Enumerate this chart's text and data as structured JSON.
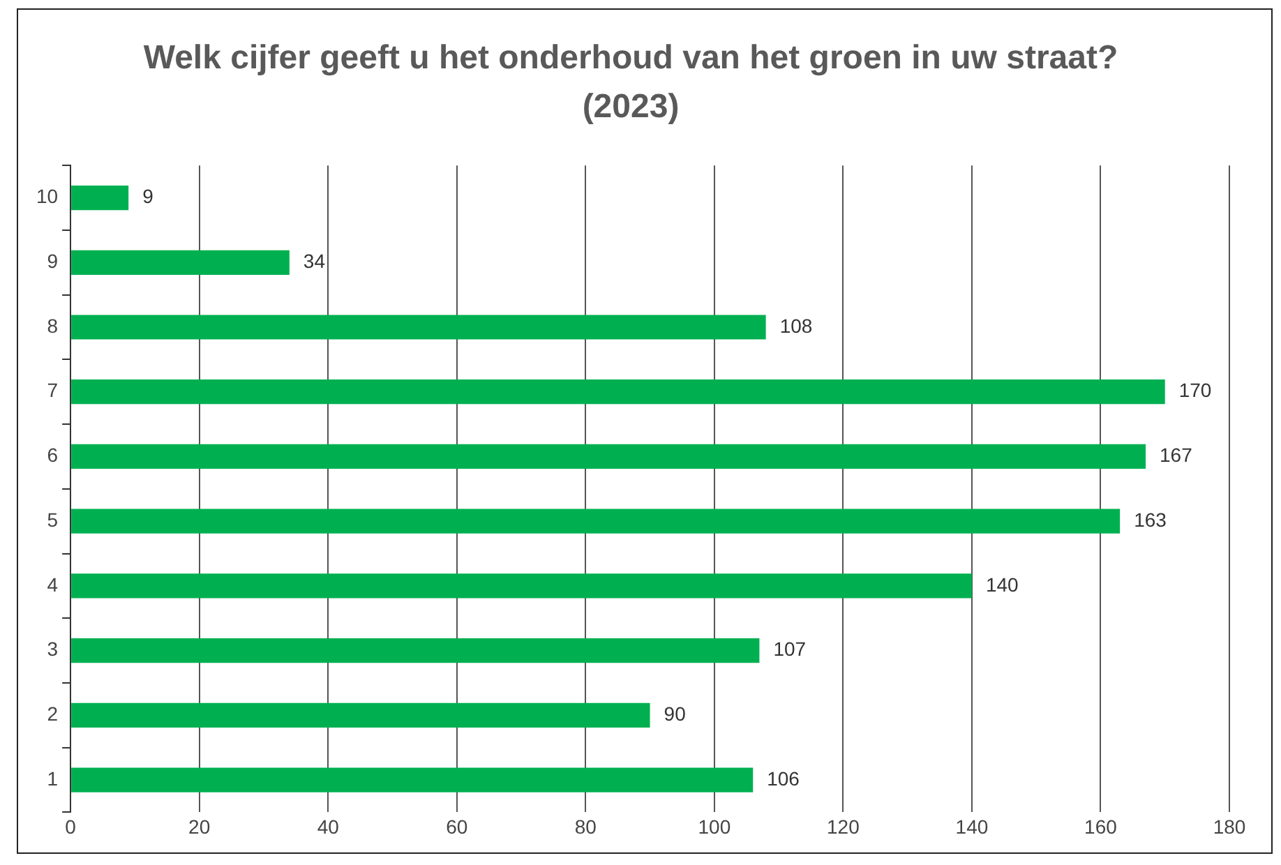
{
  "chart_data": {
    "type": "bar",
    "orientation": "horizontal",
    "title": "Welk cijfer geeft u het onderhoud van het groen in uw straat?",
    "subtitle": "(2023)",
    "categories": [
      "10",
      "9",
      "8",
      "7",
      "6",
      "5",
      "4",
      "3",
      "2",
      "1"
    ],
    "values": [
      9,
      34,
      108,
      170,
      167,
      163,
      140,
      107,
      90,
      106
    ],
    "color": "#00b050",
    "xlim": [
      0,
      180
    ],
    "xticks": [
      0,
      20,
      40,
      60,
      80,
      100,
      120,
      140,
      160,
      180
    ],
    "grid": "x",
    "data_labels": true,
    "legend": false
  }
}
